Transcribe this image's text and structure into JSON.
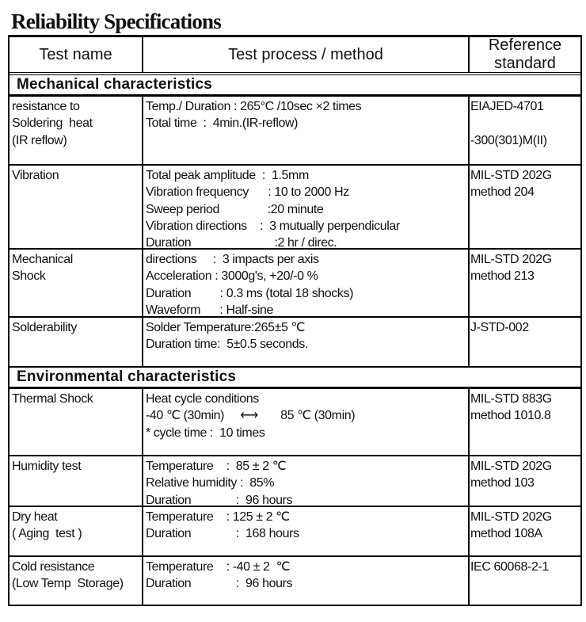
{
  "title": "Reliability Specifications",
  "header": {
    "test_name": "Test name",
    "method": "Test process / method",
    "reference_1": "Reference",
    "reference_2": "standard"
  },
  "sections": [
    {
      "label": "Mechanical  characteristics",
      "rows": [
        {
          "name": [
            "resistance to",
            "Soldering  heat",
            "(IR reflow)"
          ],
          "method": [
            "Temp./ Duration : 265°C /10sec ×2 times",
            "Total time  :  4min.(IR-reflow)"
          ],
          "reference": [
            "EIAJED-4701",
            "",
            "-300(301)M(II)"
          ]
        },
        {
          "name": [
            "Vibration"
          ],
          "method": [
            "Total peak amplitude  :  1.5mm",
            "Vibration frequency      : 10 to 2000 Hz",
            "Sweep period               :20 minute",
            "Vibration directions    :  3 mutually perpendicular",
            "Duration                          :2 hr / direc."
          ],
          "reference": [
            "MIL-STD 202G",
            "method 204"
          ]
        },
        {
          "name": [
            "Mechanical",
            "Shock"
          ],
          "method": [
            "directions     :  3 impacts per axis",
            "Acceleration : 3000g's, +20/-0 %",
            "Duration         : 0.3 ms (total 18 shocks)",
            "Waveform      : Half-sine"
          ],
          "reference": [
            "MIL-STD 202G",
            "method 213"
          ]
        },
        {
          "name": [
            "Solderability"
          ],
          "method": [
            "Solder Temperature:265±5 ℃",
            "Duration time:  5±0.5 seconds."
          ],
          "reference": [
            "J-STD-002"
          ]
        }
      ]
    },
    {
      "label": "Environmental characteristics",
      "rows": [
        {
          "name": [
            "Thermal Shock"
          ],
          "method": [
            "Heat cycle conditions",
            "-40 ℃ (30min)     ⟷       85 ℃ (30min)",
            "* cycle time :  10 times"
          ],
          "reference": [
            "MIL-STD 883G",
            "method 1010.8"
          ]
        },
        {
          "name": [
            "Humidity test"
          ],
          "method": [
            "Temperature    :  85 ± 2 ℃",
            "Relative humidity :  85%",
            "Duration              :  96 hours"
          ],
          "reference": [
            "MIL-STD 202G",
            "method 103"
          ]
        },
        {
          "name": [
            "Dry heat",
            "( Aging  test )"
          ],
          "method": [
            "Temperature    : 125 ± 2 ℃",
            "Duration              :  168 hours"
          ],
          "reference": [
            "MIL-STD 202G",
            "method 108A"
          ]
        },
        {
          "name": [
            "Cold resistance",
            "(Low Temp  Storage)"
          ],
          "method": [
            "Temperature    : -40 ± 2  ℃",
            "Duration              :  96 hours"
          ],
          "reference": [
            "IEC 60068-2-1"
          ]
        }
      ]
    }
  ]
}
